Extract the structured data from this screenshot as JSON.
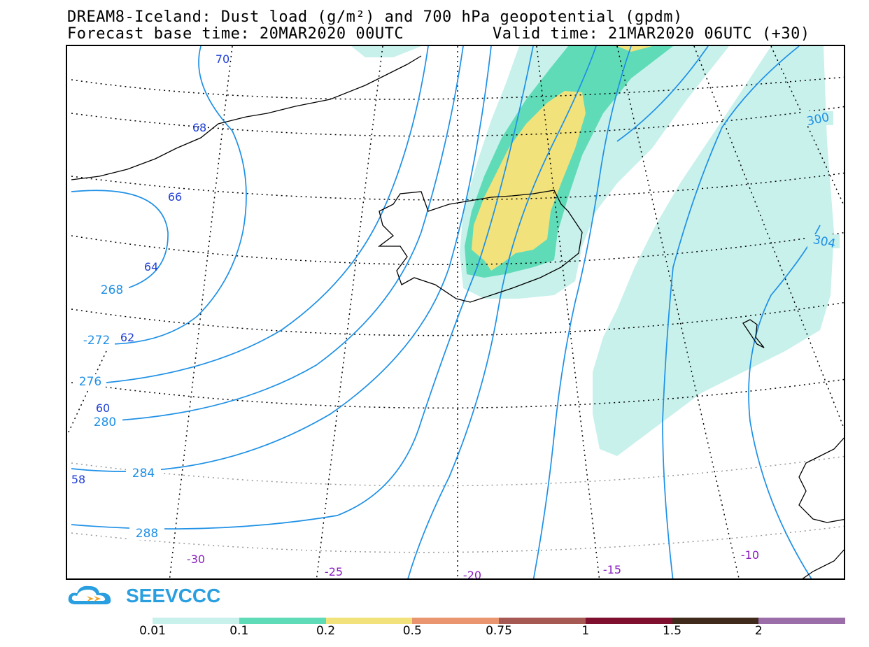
{
  "title": {
    "line1": "DREAM8-Iceland: Dust load (g/m²) and 700 hPa geopotential (gpdm)",
    "line2_left": "Forecast base time: 20MAR2020 00UTC",
    "line2_right": "Valid time: 21MAR2020 06UTC (+30)"
  },
  "map": {
    "latitude_labels": [
      "70",
      "68",
      "66",
      "64",
      "62",
      "60",
      "58"
    ],
    "longitude_labels": [
      "-30",
      "-25",
      "-20",
      "-15",
      "-10"
    ],
    "contour_labels": [
      "268",
      "-272",
      "276",
      "280",
      "284",
      "288",
      "300",
      "304"
    ],
    "colors": {
      "contour": "#1e90e6",
      "lat_label": "#1f3fd6",
      "lon_label": "#8a1fc0",
      "coast": "#000000"
    }
  },
  "logo": {
    "text": "SEEVCCC"
  },
  "legend": {
    "segments": [
      {
        "color": "#c8f1ec"
      },
      {
        "color": "#5fdcb7"
      },
      {
        "color": "#f2e27b"
      },
      {
        "color": "#e9956f"
      },
      {
        "color": "#a65852"
      },
      {
        "color": "#7e0f2e"
      },
      {
        "color": "#3f2a1c"
      },
      {
        "color": "#9b6eaa"
      }
    ],
    "tick_labels": [
      "0.01",
      "0.1",
      "0.2",
      "0.5",
      "0.75",
      "1",
      "1.5",
      "2"
    ]
  }
}
